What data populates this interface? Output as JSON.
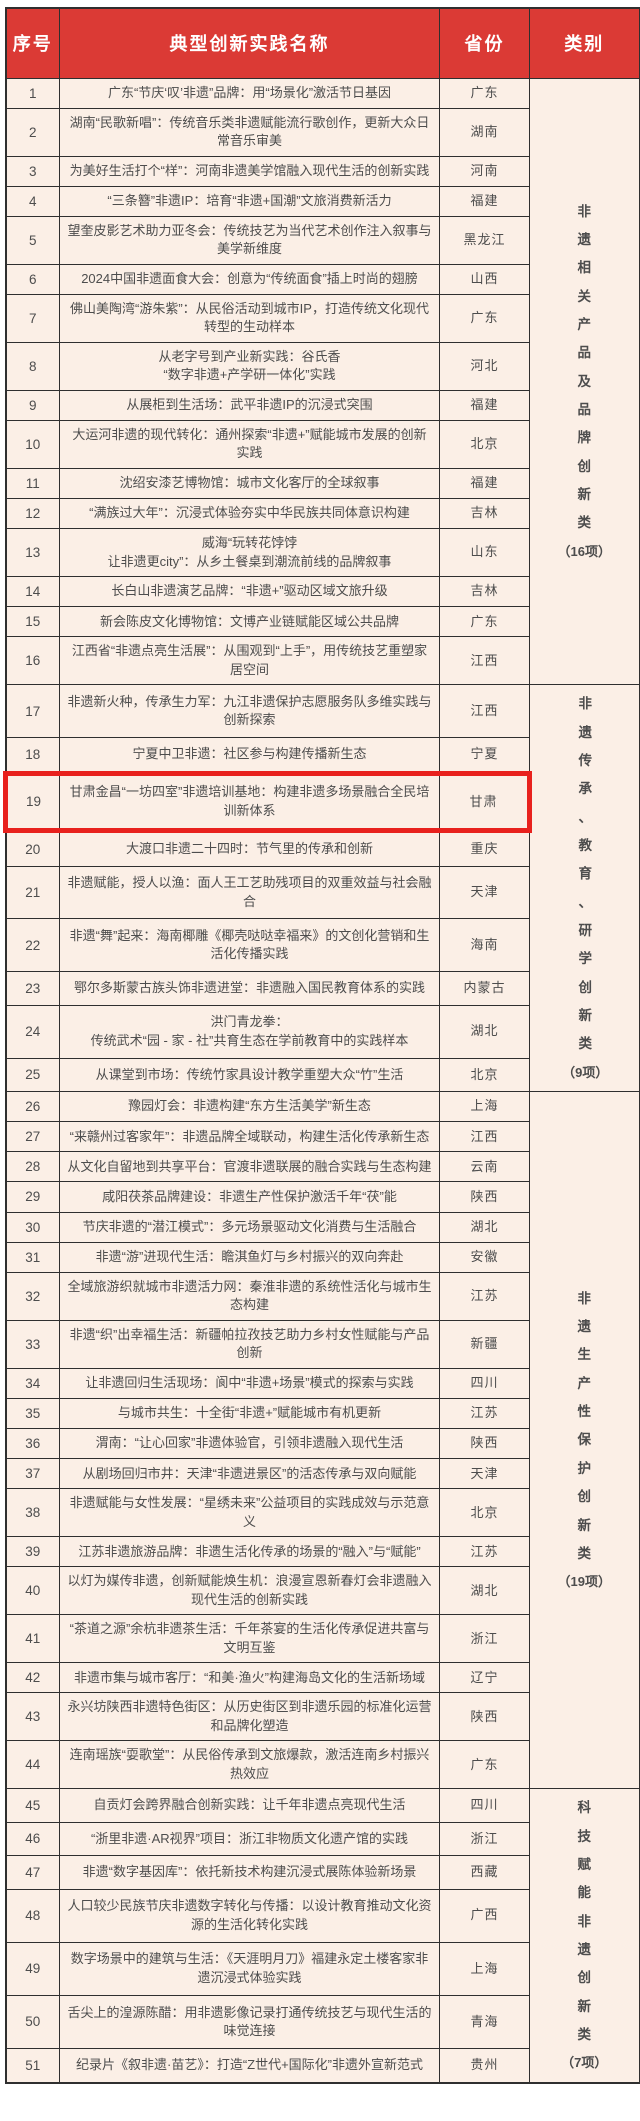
{
  "colors": {
    "header_bg": "#DB3A35",
    "row_bg": "#FBEFE6",
    "border": "#2F2F2F",
    "highlight_border": "#E8211D",
    "text": "#4D4D4D",
    "header_text": "#FFFFFF"
  },
  "table": {
    "headers": {
      "index": "序号",
      "name": "典型创新实践名称",
      "province": "省份",
      "category": "类别"
    },
    "highlighted": {
      "row_no": 19
    },
    "categories": [
      {
        "label": "非遗相关产品及品牌创新类",
        "count": "（16项）",
        "from": 1,
        "to": 16
      },
      {
        "label": "非遗传承、教育、研学创新类",
        "count": "（9项）",
        "from": 17,
        "to": 25
      },
      {
        "label": "非遗生产性保护创新类",
        "count": "（19项）",
        "from": 26,
        "to": 44
      },
      {
        "label": "科技赋能非遗创新类",
        "count": "（7项）",
        "from": 45,
        "to": 51
      }
    ],
    "rows": [
      {
        "no": 1,
        "name": "广东“节庆‘叹’非遗”品牌：用“场景化”激活节日基因",
        "province": "广东"
      },
      {
        "no": 2,
        "name": "湖南“民歌新唱”：传统音乐类非遗赋能流行歌创作，更新大众日常音乐审美",
        "province": "湖南"
      },
      {
        "no": 3,
        "name": "为美好生活打个“样”：河南非遗美学馆融入现代生活的创新实践",
        "province": "河南"
      },
      {
        "no": 4,
        "name": "“三条簪”非遗IP：培育“非遗+国潮”文旅消费新活力",
        "province": "福建"
      },
      {
        "no": 5,
        "name": "望奎皮影艺术助力亚冬会：传统技艺为当代艺术创作注入叙事与美学新维度",
        "province": "黑龙江"
      },
      {
        "no": 6,
        "name": "2024中国非遗面食大会：创意为“传统面食”插上时尚的翅膀",
        "province": "山西"
      },
      {
        "no": 7,
        "name": "佛山美陶湾“游朱紫”：从民俗活动到城市IP，打造传统文化现代转型的生动样本",
        "province": "广东"
      },
      {
        "no": 8,
        "name": "从老字号到产业新实践：谷氏香\n“数字非遗+产学研一体化”实践",
        "province": "河北"
      },
      {
        "no": 9,
        "name": "从展柜到生活场：武平非遗IP的沉浸式突围",
        "province": "福建"
      },
      {
        "no": 10,
        "name": "大运河非遗的现代转化：通州探索“非遗+”赋能城市发展的创新实践",
        "province": "北京"
      },
      {
        "no": 11,
        "name": "沈绍安漆艺博物馆：城市文化客厅的全球叙事",
        "province": "福建"
      },
      {
        "no": 12,
        "name": "“满族过大年”：沉浸式体验夯实中华民族共同体意识构建",
        "province": "吉林"
      },
      {
        "no": 13,
        "name": "威海“玩转花饽饽\n让非遗更city”：从乡土餐桌到潮流前线的品牌叙事",
        "province": "山东"
      },
      {
        "no": 14,
        "name": "长白山非遗演艺品牌：“非遗+”驱动区域文旅升级",
        "province": "吉林"
      },
      {
        "no": 15,
        "name": "新会陈皮文化博物馆：文博产业链赋能区域公共品牌",
        "province": "广东"
      },
      {
        "no": 16,
        "name": "江西省“非遗点亮生活展”：从围观到“上手”，用传统技艺重塑家居空间",
        "province": "江西"
      },
      {
        "no": 17,
        "name": "非遗新火种，传承生力军：九江非遗保护志愿服务队多维实践与创新探索",
        "province": "江西"
      },
      {
        "no": 18,
        "name": "宁夏中卫非遗：社区参与构建传播新生态",
        "province": "宁夏"
      },
      {
        "no": 19,
        "name": "甘肃金昌“一坊四室”非遗培训基地：构建非遗多场景融合全民培训新体系",
        "province": "甘肃"
      },
      {
        "no": 20,
        "name": "大渡口非遗二十四时：节气里的传承和创新",
        "province": "重庆"
      },
      {
        "no": 21,
        "name": "非遗赋能，授人以渔：面人王工艺助残项目的双重效益与社会融合",
        "province": "天津"
      },
      {
        "no": 22,
        "name": "非遗“舞”起来：海南椰雕《椰壳哒哒幸福来》的文创化营销和生活化传播实践",
        "province": "海南"
      },
      {
        "no": 23,
        "name": "鄂尔多斯蒙古族头饰非遗进堂：非遗融入国民教育体系的实践",
        "province": "内蒙古"
      },
      {
        "no": 24,
        "name": "洪门青龙拳：\n传统武术“园 - 家 - 社”共育生态在学前教育中的实践样本",
        "province": "湖北"
      },
      {
        "no": 25,
        "name": "从课堂到市场：传统竹家具设计教学重塑大众“竹”生活",
        "province": "北京"
      },
      {
        "no": 26,
        "name": "豫园灯会：非遗构建“东方生活美学”新生态",
        "province": "上海"
      },
      {
        "no": 27,
        "name": "“来赣州过客家年”：非遗品牌全域联动，构建生活化传承新生态",
        "province": "江西"
      },
      {
        "no": 28,
        "name": "从文化自留地到共享平台：官渡非遗联展的融合实践与生态构建",
        "province": "云南"
      },
      {
        "no": 29,
        "name": "咸阳茯茶品牌建设：非遗生产性保护激活千年“茯”能",
        "province": "陕西"
      },
      {
        "no": 30,
        "name": "节庆非遗的“潜江模式”：多元场景驱动文化消费与生活融合",
        "province": "湖北"
      },
      {
        "no": 31,
        "name": "非遗“游”进现代生活：瞻淇鱼灯与乡村振兴的双向奔赴",
        "province": "安徽"
      },
      {
        "no": 32,
        "name": "全域旅游织就城市非遗活力网：秦淮非遗的系统性活化与城市生态构建",
        "province": "江苏"
      },
      {
        "no": 33,
        "name": "非遗“织”出幸福生活：新疆帕拉孜技艺助力乡村女性赋能与产品创新",
        "province": "新疆"
      },
      {
        "no": 34,
        "name": "让非遗回归生活现场：阆中“非遗+场景”模式的探索与实践",
        "province": "四川"
      },
      {
        "no": 35,
        "name": "与城市共生：十全街“非遗+”赋能城市有机更新",
        "province": "江苏"
      },
      {
        "no": 36,
        "name": "渭南：“让心回家”非遗体验官，引领非遗融入现代生活",
        "province": "陕西"
      },
      {
        "no": 37,
        "name": "从剧场回归市井：天津“非遗进景区”的活态传承与双向赋能",
        "province": "天津"
      },
      {
        "no": 38,
        "name": "非遗赋能与女性发展：“星绣未来”公益项目的实践成效与示范意义",
        "province": "北京"
      },
      {
        "no": 39,
        "name": "江苏非遗旅游品牌：非遗生活化传承的场景的“融入”与“赋能”",
        "province": "江苏"
      },
      {
        "no": 40,
        "name": "以灯为媒传非遗，创新赋能焕生机：浪漫宣恩新春灯会非遗融入现代生活的创新实践",
        "province": "湖北"
      },
      {
        "no": 41,
        "name": "“茶道之源”余杭非遗茶生活：千年茶宴的生活化传承促进共富与文明互鉴",
        "province": "浙江"
      },
      {
        "no": 42,
        "name": "非遗市集与城市客厅：“和美·渔火”构建海岛文化的生活新场域",
        "province": "辽宁"
      },
      {
        "no": 43,
        "name": "永兴坊陕西非遗特色街区：从历史街区到非遗乐园的标准化运营和品牌化塑造",
        "province": "陕西"
      },
      {
        "no": 44,
        "name": "连南瑶族“耍歌堂”：从民俗传承到文旅爆款，激活连南乡村振兴热效应",
        "province": "广东"
      },
      {
        "no": 45,
        "name": "自贡灯会跨界融合创新实践：让千年非遗点亮现代生活",
        "province": "四川"
      },
      {
        "no": 46,
        "name": "“浙里非遗·AR视界”项目：浙江非物质文化遗产馆的实践",
        "province": "浙江"
      },
      {
        "no": 47,
        "name": "非遗“数字基因库”：依托新技术构建沉浸式展陈体验新场景",
        "province": "西藏"
      },
      {
        "no": 48,
        "name": "人口较少民族节庆非遗数字转化与传播：以设计教育推动文化资源的生活化转化实践",
        "province": "广西"
      },
      {
        "no": 49,
        "name": "数字场景中的建筑与生活：《天涯明月刀》福建永定土楼客家非遗沉浸式体验实践",
        "province": "上海"
      },
      {
        "no": 50,
        "name": "舌尖上的湟源陈醋：用非遗影像记录打通传统技艺与现代生活的味觉连接",
        "province": "青海"
      },
      {
        "no": 51,
        "name": "纪录片《叙非遗·苗艺》：打造“Z世代+国际化”非遗外宣新范式",
        "province": "贵州"
      }
    ]
  }
}
